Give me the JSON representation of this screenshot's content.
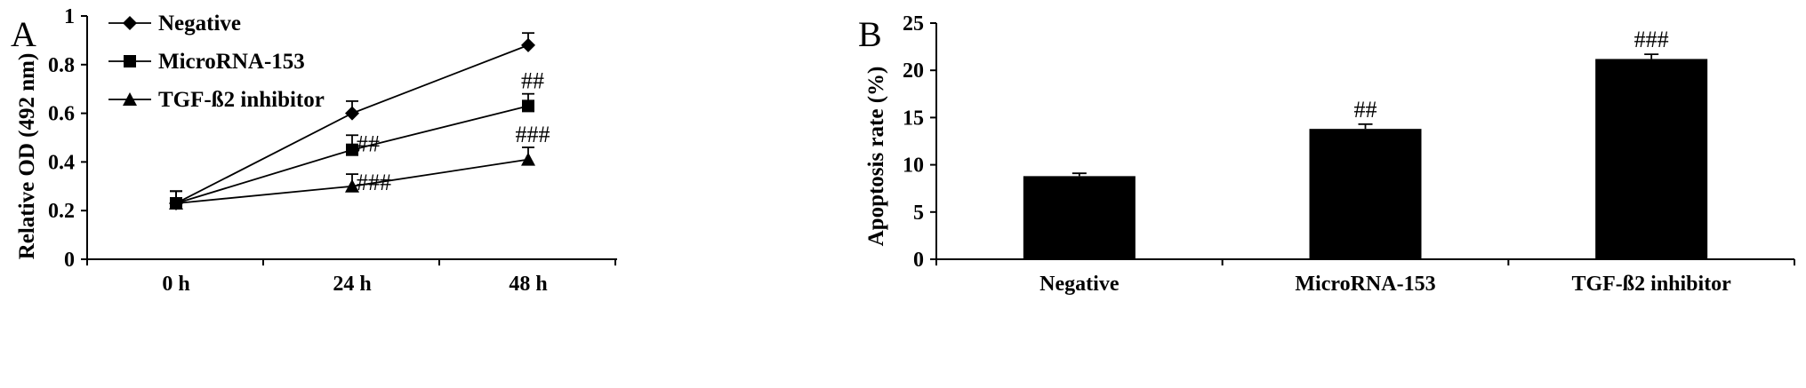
{
  "chart_data": [
    {
      "panel_label": "A",
      "type": "line",
      "title": "",
      "xlabel": "",
      "ylabel": "Relative OD (492 nm)",
      "categories": [
        "0 h",
        "24 h",
        "48 h"
      ],
      "ylim": [
        0,
        1
      ],
      "yticks": [
        0,
        0.2,
        0.4,
        0.6,
        0.8,
        1
      ],
      "ytick_labels": [
        "0",
        "0.2",
        "0.4",
        "0.6",
        "0.8",
        "1"
      ],
      "grid": false,
      "legend": "top-left",
      "series": [
        {
          "name": "Negative",
          "marker": "diamond",
          "values": [
            0.23,
            0.6,
            0.88
          ],
          "errors": [
            0.05,
            0.05,
            0.05
          ]
        },
        {
          "name": "MicroRNA-153",
          "marker": "square",
          "values": [
            0.23,
            0.45,
            0.63
          ],
          "errors": [
            0.05,
            0.06,
            0.05
          ]
        },
        {
          "name": "TGF-ß2 inhibitor",
          "marker": "triangle",
          "values": [
            0.23,
            0.3,
            0.41
          ],
          "errors": [
            0.05,
            0.05,
            0.05
          ]
        }
      ],
      "annotations": [
        {
          "text": "##",
          "series": 1,
          "index": 1
        },
        {
          "text": "##",
          "series": 1,
          "index": 2
        },
        {
          "text": "###",
          "series": 2,
          "index": 1
        },
        {
          "text": "###",
          "series": 2,
          "index": 2
        }
      ]
    },
    {
      "panel_label": "B",
      "type": "bar",
      "title": "",
      "xlabel": "",
      "ylabel": "Apoptosis rate (%)",
      "categories": [
        "Negative",
        "MicroRNA-153",
        "TGF-ß2 inhibitor"
      ],
      "values": [
        8.8,
        13.8,
        21.2
      ],
      "errors": [
        0.3,
        0.5,
        0.5
      ],
      "ylim": [
        0,
        25
      ],
      "yticks": [
        0,
        5,
        10,
        15,
        20,
        25
      ],
      "ytick_labels": [
        "0",
        "5",
        "10",
        "15",
        "20",
        "25"
      ],
      "grid": false,
      "bar_color": "#000000",
      "annotations": [
        {
          "text": "",
          "index": 0
        },
        {
          "text": "##",
          "index": 1
        },
        {
          "text": "###",
          "index": 2
        }
      ]
    }
  ]
}
